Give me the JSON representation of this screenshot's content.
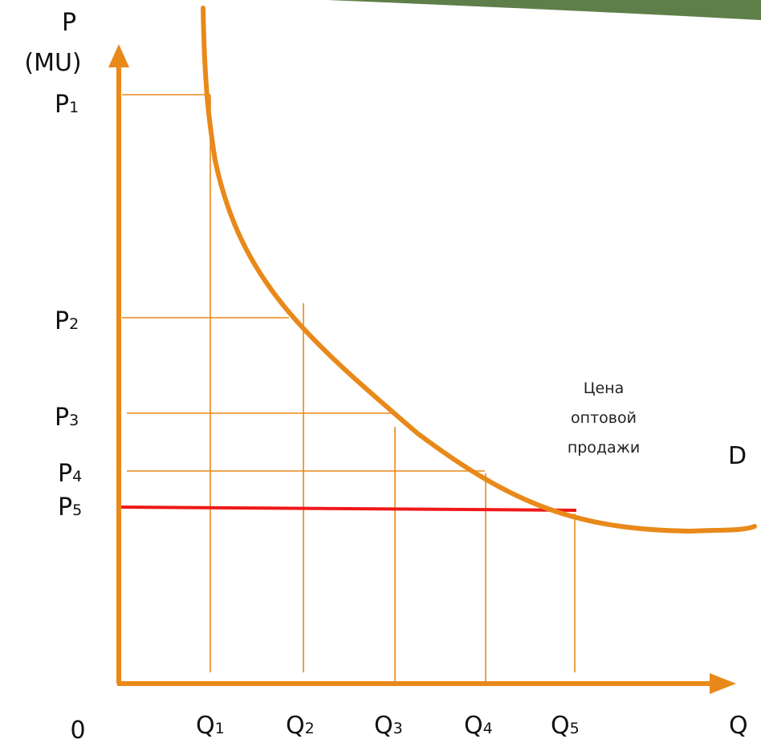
{
  "colors": {
    "axis": "#e8891a",
    "curve": "#e8891a",
    "guide": "#e8891a",
    "highlight": "#f01818",
    "banner": "#5f7f4a",
    "text": "#111111"
  },
  "axes": {
    "y_label_line1": "P",
    "y_label_line2": "(MU)",
    "x_label": "Q",
    "origin_label": "0"
  },
  "prices": [
    {
      "base": "P",
      "sub": "1"
    },
    {
      "base": "P",
      "sub": "2"
    },
    {
      "base": "P",
      "sub": "3"
    },
    {
      "base": "P",
      "sub": "4"
    },
    {
      "base": "P",
      "sub": "5"
    }
  ],
  "quantities": [
    {
      "base": "Q",
      "sub": "1"
    },
    {
      "base": "Q",
      "sub": "2"
    },
    {
      "base": "Q",
      "sub": "3"
    },
    {
      "base": "Q",
      "sub": "4"
    },
    {
      "base": "Q",
      "sub": "5"
    }
  ],
  "curve_label": "D",
  "note_lines": [
    "Цена",
    "оптовой",
    "продажи"
  ]
}
